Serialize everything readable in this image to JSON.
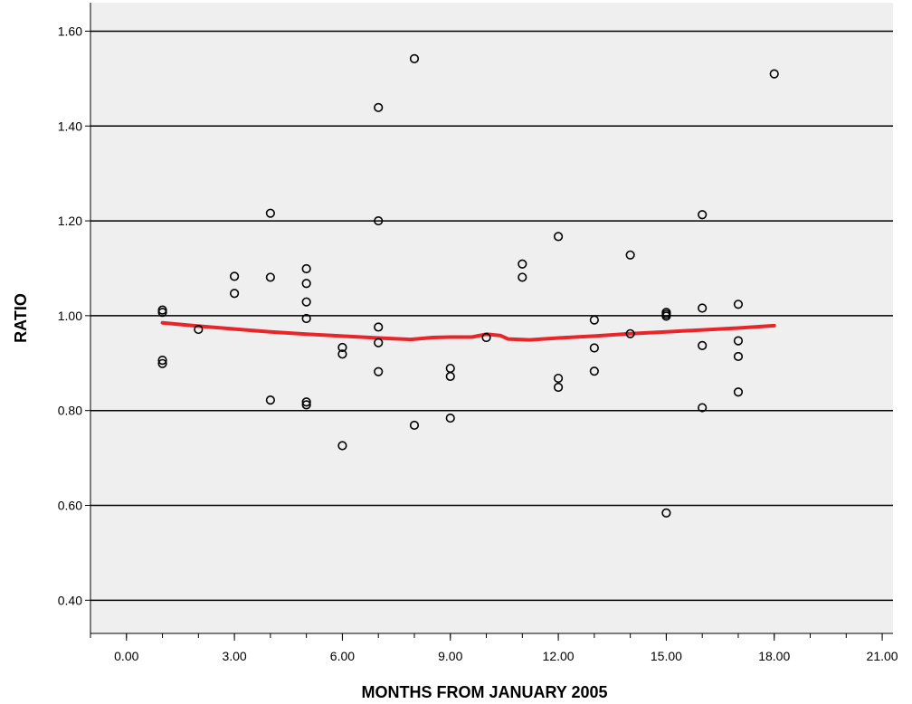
{
  "chart_data": {
    "type": "scatter",
    "title": "",
    "xlabel": "MONTHS FROM JANUARY 2005",
    "ylabel": "RATIO",
    "xlim": [
      -1,
      21.3
    ],
    "ylim": [
      0.33,
      1.66
    ],
    "x_ticks": [
      0,
      3,
      6,
      9,
      12,
      15,
      18,
      21
    ],
    "x_tick_labels": [
      "0.00",
      "3.00",
      "6.00",
      "9.00",
      "12.00",
      "15.00",
      "18.00",
      "21.00"
    ],
    "x_minor_step": 1,
    "y_ticks": [
      0.4,
      0.6,
      0.8,
      1.0,
      1.2,
      1.4,
      1.6
    ],
    "y_tick_labels": [
      "0.40",
      "0.60",
      "0.80",
      "1.00",
      "1.20",
      "1.40",
      "1.60"
    ],
    "grid": "horizontal",
    "colors": {
      "background": "#efefef",
      "grid": "#000000",
      "trend": "#e8262a",
      "points": "#000000"
    },
    "points": [
      {
        "x": 1,
        "y": 1.012
      },
      {
        "x": 1,
        "y": 1.007
      },
      {
        "x": 1,
        "y": 0.906
      },
      {
        "x": 1,
        "y": 0.899
      },
      {
        "x": 2,
        "y": 0.971
      },
      {
        "x": 3,
        "y": 1.083
      },
      {
        "x": 3,
        "y": 1.047
      },
      {
        "x": 4,
        "y": 1.216
      },
      {
        "x": 4,
        "y": 1.081
      },
      {
        "x": 4,
        "y": 0.822
      },
      {
        "x": 5,
        "y": 1.099
      },
      {
        "x": 5,
        "y": 1.068
      },
      {
        "x": 5,
        "y": 1.029
      },
      {
        "x": 5,
        "y": 0.994
      },
      {
        "x": 5,
        "y": 0.818
      },
      {
        "x": 5,
        "y": 0.812
      },
      {
        "x": 6,
        "y": 0.933
      },
      {
        "x": 6,
        "y": 0.919
      },
      {
        "x": 6,
        "y": 0.726
      },
      {
        "x": 7,
        "y": 1.439
      },
      {
        "x": 7,
        "y": 1.2
      },
      {
        "x": 7,
        "y": 0.976
      },
      {
        "x": 7,
        "y": 0.943
      },
      {
        "x": 7,
        "y": 0.882
      },
      {
        "x": 8,
        "y": 1.542
      },
      {
        "x": 8,
        "y": 0.769
      },
      {
        "x": 9,
        "y": 0.889
      },
      {
        "x": 9,
        "y": 0.872
      },
      {
        "x": 9,
        "y": 0.784
      },
      {
        "x": 10,
        "y": 0.954
      },
      {
        "x": 11,
        "y": 1.109
      },
      {
        "x": 11,
        "y": 1.081
      },
      {
        "x": 12,
        "y": 1.167
      },
      {
        "x": 12,
        "y": 0.868
      },
      {
        "x": 12,
        "y": 0.849
      },
      {
        "x": 13,
        "y": 0.991
      },
      {
        "x": 13,
        "y": 0.932
      },
      {
        "x": 13,
        "y": 0.883
      },
      {
        "x": 14,
        "y": 1.128
      },
      {
        "x": 14,
        "y": 0.962
      },
      {
        "x": 15,
        "y": 1.007
      },
      {
        "x": 15,
        "y": 1.003
      },
      {
        "x": 15,
        "y": 0.999
      },
      {
        "x": 15,
        "y": 0.584
      },
      {
        "x": 16,
        "y": 1.213
      },
      {
        "x": 16,
        "y": 1.016
      },
      {
        "x": 16,
        "y": 0.937
      },
      {
        "x": 16,
        "y": 0.806
      },
      {
        "x": 17,
        "y": 1.024
      },
      {
        "x": 17,
        "y": 0.947
      },
      {
        "x": 17,
        "y": 0.914
      },
      {
        "x": 17,
        "y": 0.839
      },
      {
        "x": 18,
        "y": 1.51
      }
    ],
    "trend_line": [
      {
        "x": 1,
        "y": 0.985
      },
      {
        "x": 2,
        "y": 0.978
      },
      {
        "x": 3,
        "y": 0.972
      },
      {
        "x": 4,
        "y": 0.966
      },
      {
        "x": 5,
        "y": 0.961
      },
      {
        "x": 6,
        "y": 0.957
      },
      {
        "x": 7,
        "y": 0.953
      },
      {
        "x": 7.9,
        "y": 0.95
      },
      {
        "x": 8.5,
        "y": 0.954
      },
      {
        "x": 9,
        "y": 0.955
      },
      {
        "x": 9.6,
        "y": 0.955
      },
      {
        "x": 10,
        "y": 0.961
      },
      {
        "x": 10.4,
        "y": 0.958
      },
      {
        "x": 10.6,
        "y": 0.951
      },
      {
        "x": 11.2,
        "y": 0.949
      },
      {
        "x": 12,
        "y": 0.953
      },
      {
        "x": 13,
        "y": 0.957
      },
      {
        "x": 14,
        "y": 0.962
      },
      {
        "x": 15,
        "y": 0.966
      },
      {
        "x": 16,
        "y": 0.97
      },
      {
        "x": 17,
        "y": 0.974
      },
      {
        "x": 18,
        "y": 0.979
      }
    ]
  }
}
